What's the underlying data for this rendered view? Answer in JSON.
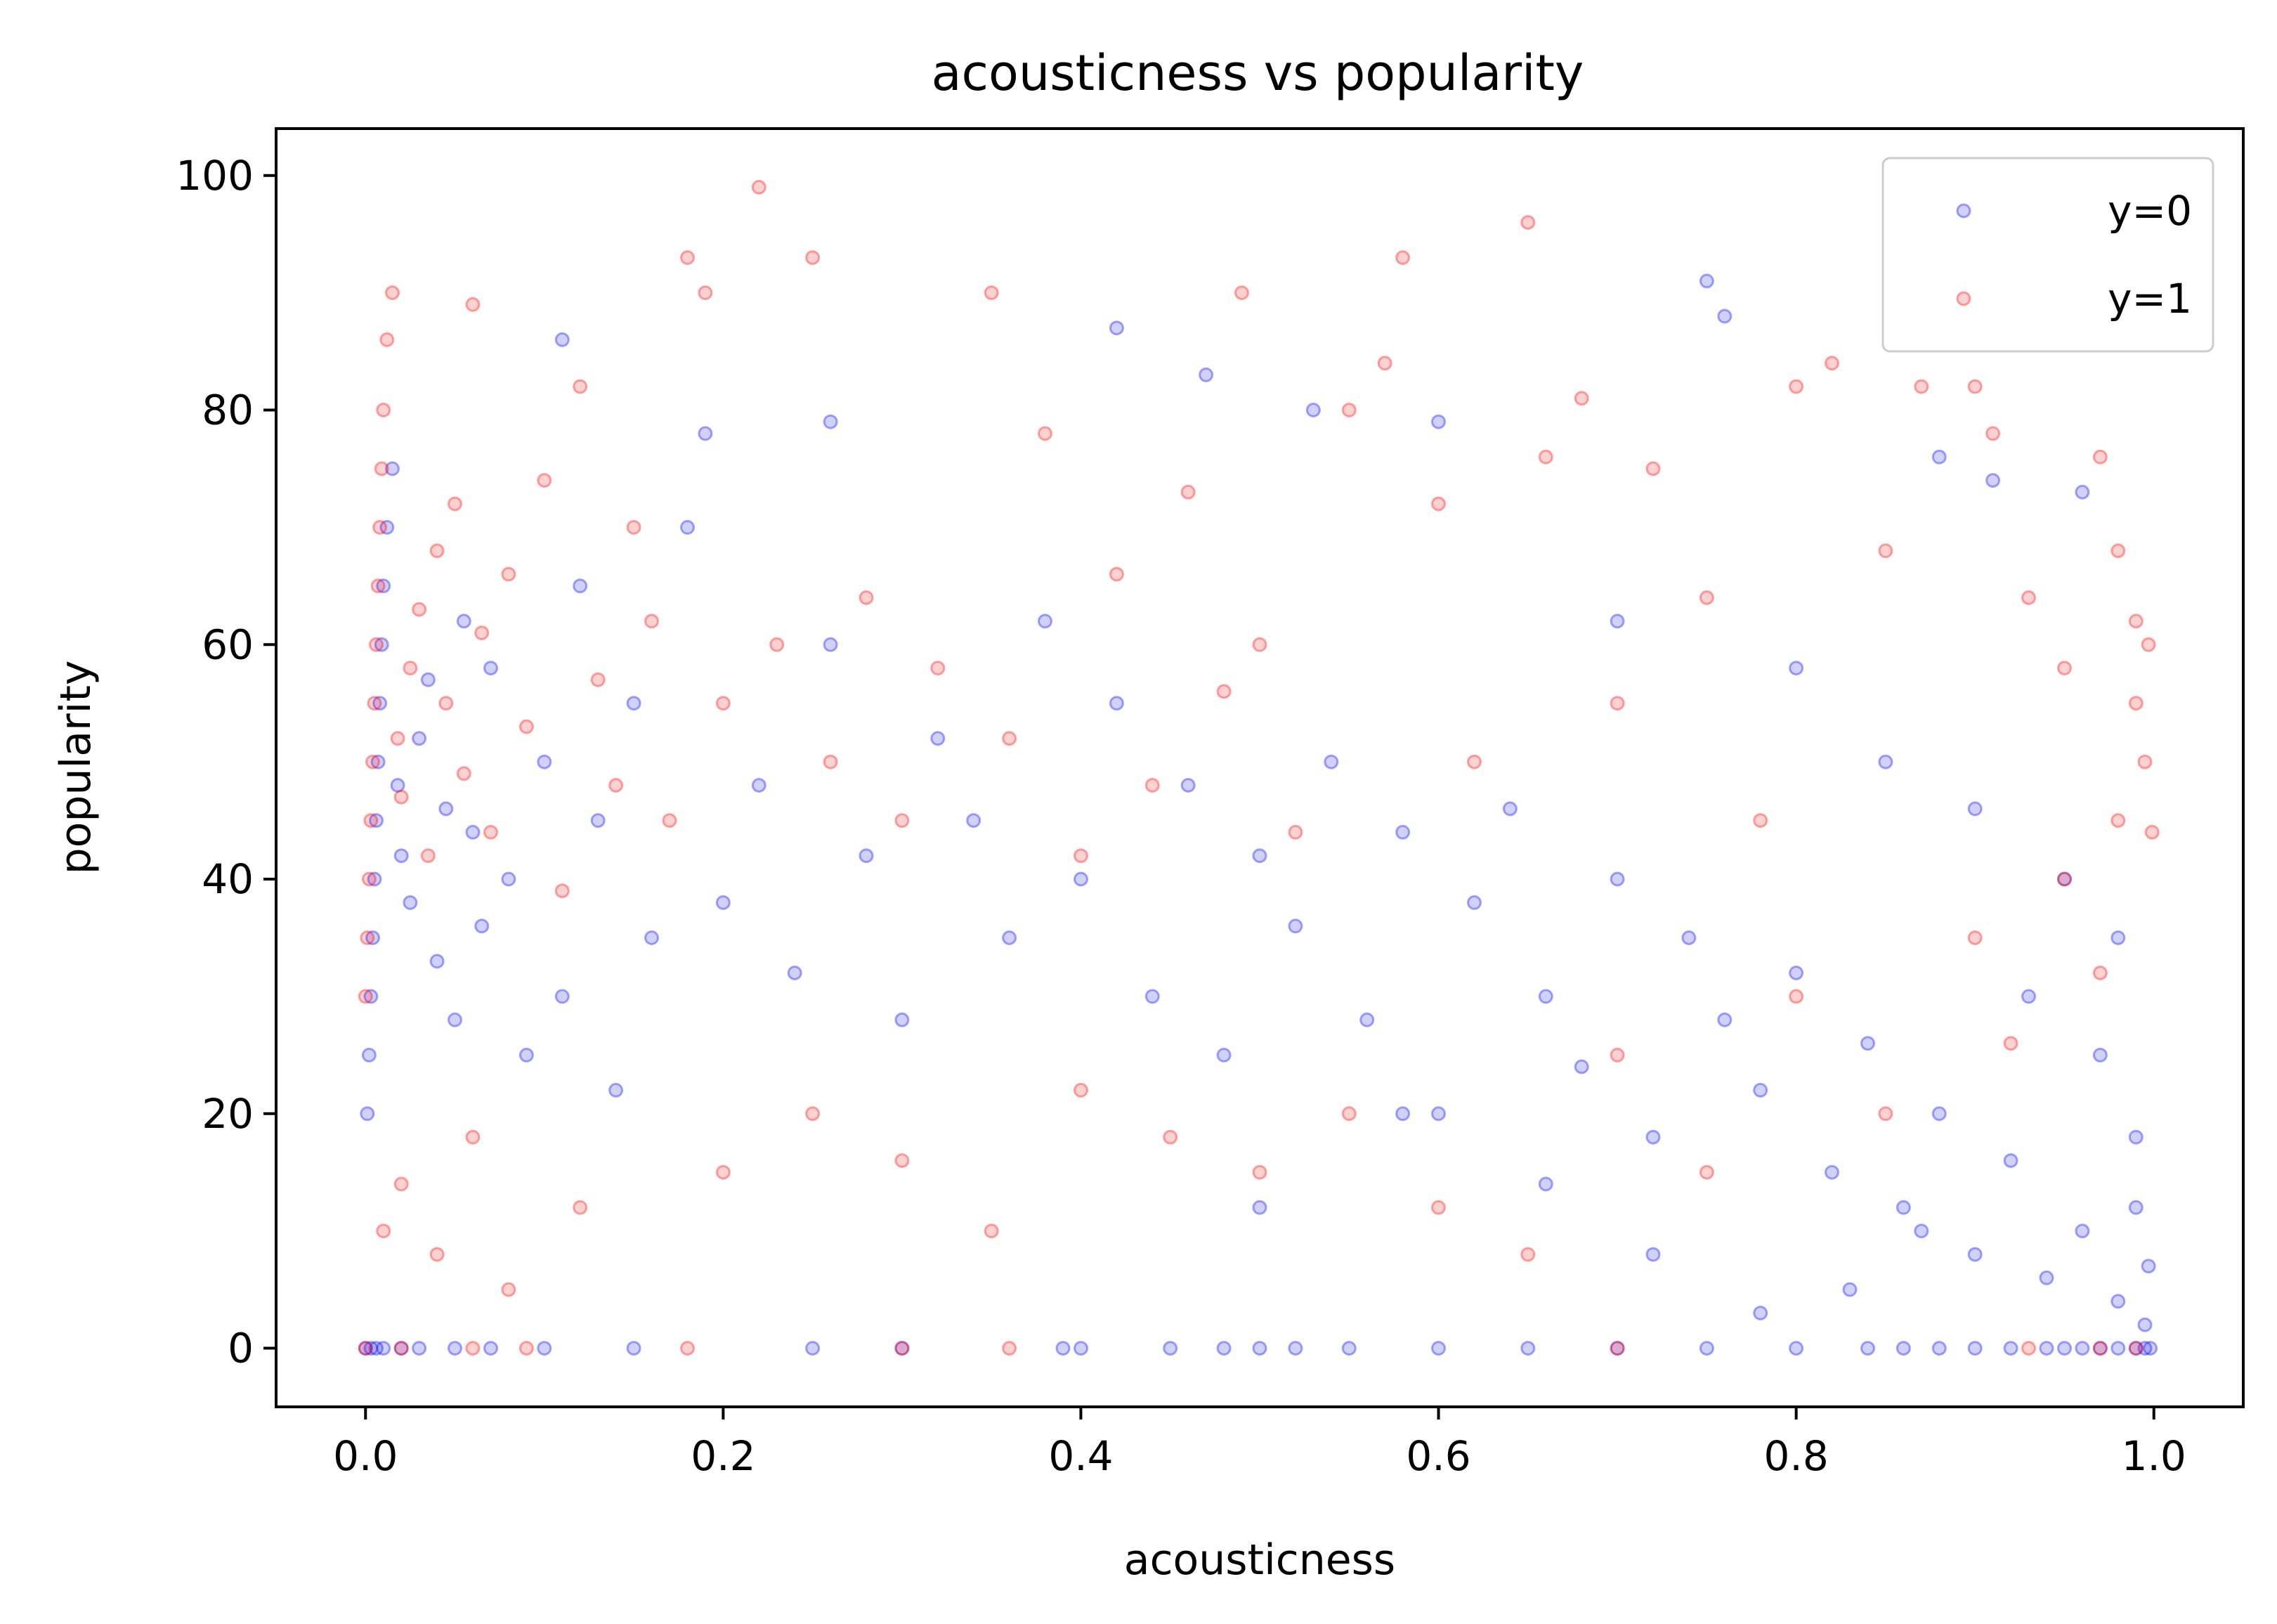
{
  "chart_data": {
    "type": "scatter",
    "title": "acousticness vs popularity",
    "xlabel": "acousticness",
    "ylabel": "popularity",
    "xlim": [
      -0.05,
      1.05
    ],
    "ylim": [
      -5,
      104
    ],
    "xticks": [
      0.0,
      0.2,
      0.4,
      0.6,
      0.8,
      1.0
    ],
    "xtick_labels": [
      "0.0",
      "0.2",
      "0.4",
      "0.6",
      "0.8",
      "1.0"
    ],
    "yticks": [
      0,
      20,
      40,
      60,
      80,
      100
    ],
    "ytick_labels": [
      "0",
      "20",
      "40",
      "60",
      "80",
      "100"
    ],
    "grid": false,
    "legend": {
      "position": "top-right"
    },
    "series": [
      {
        "name": "y=0",
        "color": "#0000ff",
        "points": [
          [
            0.0,
            0
          ],
          [
            0.003,
            0
          ],
          [
            0.006,
            0
          ],
          [
            0.01,
            0
          ],
          [
            0.02,
            0
          ],
          [
            0.03,
            0
          ],
          [
            0.05,
            0
          ],
          [
            0.07,
            0
          ],
          [
            0.1,
            0
          ],
          [
            0.15,
            0
          ],
          [
            0.25,
            0
          ],
          [
            0.3,
            0
          ],
          [
            0.39,
            0
          ],
          [
            0.4,
            0
          ],
          [
            0.45,
            0
          ],
          [
            0.48,
            0
          ],
          [
            0.5,
            0
          ],
          [
            0.52,
            0
          ],
          [
            0.55,
            0
          ],
          [
            0.6,
            0
          ],
          [
            0.65,
            0
          ],
          [
            0.7,
            0
          ],
          [
            0.75,
            0
          ],
          [
            0.8,
            0
          ],
          [
            0.84,
            0
          ],
          [
            0.86,
            0
          ],
          [
            0.88,
            0
          ],
          [
            0.9,
            0
          ],
          [
            0.92,
            0
          ],
          [
            0.94,
            0
          ],
          [
            0.95,
            0
          ],
          [
            0.96,
            0
          ],
          [
            0.97,
            0
          ],
          [
            0.98,
            0
          ],
          [
            0.99,
            0
          ],
          [
            0.995,
            0
          ],
          [
            0.998,
            0
          ],
          [
            0.001,
            20
          ],
          [
            0.002,
            25
          ],
          [
            0.003,
            30
          ],
          [
            0.004,
            35
          ],
          [
            0.005,
            40
          ],
          [
            0.006,
            45
          ],
          [
            0.007,
            50
          ],
          [
            0.008,
            55
          ],
          [
            0.009,
            60
          ],
          [
            0.01,
            65
          ],
          [
            0.012,
            70
          ],
          [
            0.015,
            75
          ],
          [
            0.018,
            48
          ],
          [
            0.02,
            42
          ],
          [
            0.025,
            38
          ],
          [
            0.03,
            52
          ],
          [
            0.035,
            57
          ],
          [
            0.04,
            33
          ],
          [
            0.045,
            46
          ],
          [
            0.05,
            28
          ],
          [
            0.055,
            62
          ],
          [
            0.06,
            44
          ],
          [
            0.065,
            36
          ],
          [
            0.07,
            58
          ],
          [
            0.08,
            40
          ],
          [
            0.09,
            25
          ],
          [
            0.1,
            50
          ],
          [
            0.11,
            30
          ],
          [
            0.12,
            65
          ],
          [
            0.13,
            45
          ],
          [
            0.14,
            22
          ],
          [
            0.15,
            55
          ],
          [
            0.16,
            35
          ],
          [
            0.18,
            70
          ],
          [
            0.2,
            38
          ],
          [
            0.22,
            48
          ],
          [
            0.24,
            32
          ],
          [
            0.26,
            60
          ],
          [
            0.28,
            42
          ],
          [
            0.3,
            28
          ],
          [
            0.32,
            52
          ],
          [
            0.34,
            45
          ],
          [
            0.36,
            35
          ],
          [
            0.38,
            62
          ],
          [
            0.4,
            40
          ],
          [
            0.42,
            55
          ],
          [
            0.44,
            30
          ],
          [
            0.46,
            48
          ],
          [
            0.48,
            25
          ],
          [
            0.5,
            42
          ],
          [
            0.52,
            36
          ],
          [
            0.54,
            50
          ],
          [
            0.56,
            28
          ],
          [
            0.58,
            44
          ],
          [
            0.6,
            20
          ],
          [
            0.62,
            38
          ],
          [
            0.64,
            46
          ],
          [
            0.66,
            30
          ],
          [
            0.68,
            24
          ],
          [
            0.7,
            40
          ],
          [
            0.72,
            18
          ],
          [
            0.74,
            35
          ],
          [
            0.76,
            28
          ],
          [
            0.78,
            22
          ],
          [
            0.8,
            32
          ],
          [
            0.82,
            15
          ],
          [
            0.84,
            26
          ],
          [
            0.86,
            12
          ],
          [
            0.88,
            20
          ],
          [
            0.9,
            8
          ],
          [
            0.92,
            16
          ],
          [
            0.94,
            6
          ],
          [
            0.96,
            10
          ],
          [
            0.98,
            4
          ],
          [
            0.99,
            12
          ],
          [
            0.995,
            2
          ],
          [
            0.997,
            7
          ],
          [
            0.11,
            86
          ],
          [
            0.19,
            78
          ],
          [
            0.26,
            79
          ],
          [
            0.42,
            87
          ],
          [
            0.47,
            83
          ],
          [
            0.53,
            80
          ],
          [
            0.6,
            79
          ],
          [
            0.75,
            91
          ],
          [
            0.76,
            88
          ],
          [
            0.88,
            76
          ],
          [
            0.91,
            74
          ],
          [
            0.96,
            73
          ],
          [
            0.7,
            62
          ],
          [
            0.8,
            58
          ],
          [
            0.85,
            50
          ],
          [
            0.9,
            46
          ],
          [
            0.95,
            40
          ],
          [
            0.98,
            35
          ],
          [
            0.93,
            30
          ],
          [
            0.97,
            25
          ],
          [
            0.99,
            18
          ],
          [
            0.87,
            10
          ],
          [
            0.83,
            5
          ],
          [
            0.78,
            3
          ],
          [
            0.72,
            8
          ],
          [
            0.66,
            14
          ],
          [
            0.58,
            20
          ],
          [
            0.5,
            12
          ]
        ]
      },
      {
        "name": "y=1",
        "color": "#ff0000",
        "points": [
          [
            0.0,
            30
          ],
          [
            0.001,
            35
          ],
          [
            0.002,
            40
          ],
          [
            0.003,
            45
          ],
          [
            0.004,
            50
          ],
          [
            0.005,
            55
          ],
          [
            0.006,
            60
          ],
          [
            0.007,
            65
          ],
          [
            0.008,
            70
          ],
          [
            0.009,
            75
          ],
          [
            0.01,
            80
          ],
          [
            0.012,
            86
          ],
          [
            0.015,
            90
          ],
          [
            0.018,
            52
          ],
          [
            0.02,
            47
          ],
          [
            0.025,
            58
          ],
          [
            0.03,
            63
          ],
          [
            0.035,
            42
          ],
          [
            0.04,
            68
          ],
          [
            0.045,
            55
          ],
          [
            0.05,
            72
          ],
          [
            0.055,
            49
          ],
          [
            0.06,
            89
          ],
          [
            0.065,
            61
          ],
          [
            0.07,
            44
          ],
          [
            0.08,
            66
          ],
          [
            0.09,
            53
          ],
          [
            0.1,
            74
          ],
          [
            0.11,
            39
          ],
          [
            0.12,
            82
          ],
          [
            0.13,
            57
          ],
          [
            0.14,
            48
          ],
          [
            0.15,
            70
          ],
          [
            0.16,
            62
          ],
          [
            0.17,
            45
          ],
          [
            0.18,
            93
          ],
          [
            0.19,
            90
          ],
          [
            0.2,
            55
          ],
          [
            0.22,
            99
          ],
          [
            0.23,
            60
          ],
          [
            0.25,
            93
          ],
          [
            0.26,
            50
          ],
          [
            0.28,
            64
          ],
          [
            0.3,
            45
          ],
          [
            0.32,
            58
          ],
          [
            0.35,
            90
          ],
          [
            0.36,
            52
          ],
          [
            0.38,
            78
          ],
          [
            0.4,
            42
          ],
          [
            0.42,
            66
          ],
          [
            0.44,
            48
          ],
          [
            0.46,
            73
          ],
          [
            0.48,
            56
          ],
          [
            0.49,
            90
          ],
          [
            0.5,
            60
          ],
          [
            0.52,
            44
          ],
          [
            0.55,
            80
          ],
          [
            0.57,
            84
          ],
          [
            0.58,
            93
          ],
          [
            0.6,
            72
          ],
          [
            0.62,
            50
          ],
          [
            0.65,
            96
          ],
          [
            0.66,
            76
          ],
          [
            0.68,
            81
          ],
          [
            0.7,
            55
          ],
          [
            0.72,
            75
          ],
          [
            0.75,
            64
          ],
          [
            0.78,
            45
          ],
          [
            0.8,
            82
          ],
          [
            0.82,
            84
          ],
          [
            0.85,
            68
          ],
          [
            0.87,
            82
          ],
          [
            0.9,
            82
          ],
          [
            0.91,
            78
          ],
          [
            0.93,
            64
          ],
          [
            0.95,
            58
          ],
          [
            0.97,
            76
          ],
          [
            0.98,
            68
          ],
          [
            0.99,
            62
          ],
          [
            0.0,
            0
          ],
          [
            0.02,
            0
          ],
          [
            0.06,
            0
          ],
          [
            0.09,
            0
          ],
          [
            0.18,
            0
          ],
          [
            0.3,
            0
          ],
          [
            0.36,
            0
          ],
          [
            0.7,
            0
          ],
          [
            0.93,
            0
          ],
          [
            0.97,
            0
          ],
          [
            0.99,
            0
          ],
          [
            0.01,
            10
          ],
          [
            0.02,
            14
          ],
          [
            0.04,
            8
          ],
          [
            0.06,
            18
          ],
          [
            0.08,
            5
          ],
          [
            0.12,
            12
          ],
          [
            0.2,
            15
          ],
          [
            0.25,
            20
          ],
          [
            0.3,
            16
          ],
          [
            0.35,
            10
          ],
          [
            0.4,
            22
          ],
          [
            0.45,
            18
          ],
          [
            0.5,
            15
          ],
          [
            0.55,
            20
          ],
          [
            0.6,
            12
          ],
          [
            0.65,
            8
          ],
          [
            0.7,
            25
          ],
          [
            0.75,
            15
          ],
          [
            0.8,
            30
          ],
          [
            0.85,
            20
          ],
          [
            0.9,
            35
          ],
          [
            0.92,
            26
          ],
          [
            0.95,
            40
          ],
          [
            0.97,
            32
          ],
          [
            0.98,
            45
          ],
          [
            0.99,
            55
          ],
          [
            0.995,
            50
          ],
          [
            0.997,
            60
          ],
          [
            0.999,
            44
          ]
        ]
      }
    ]
  }
}
